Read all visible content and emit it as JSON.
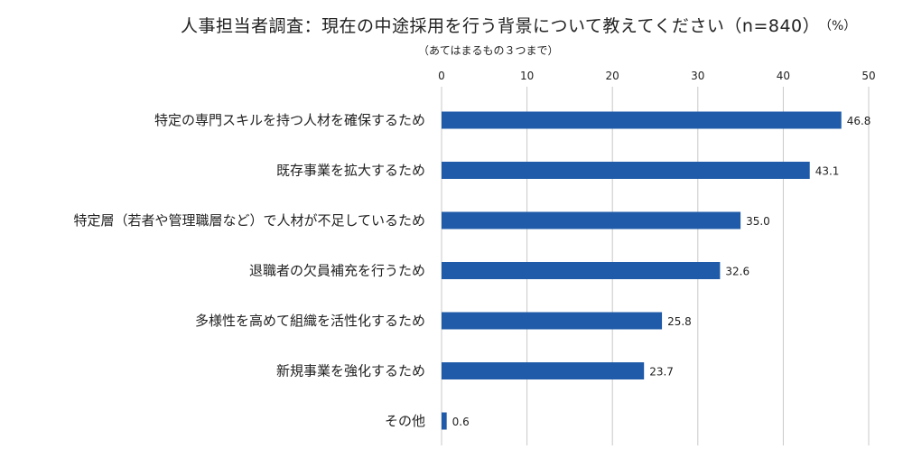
{
  "chart_data": {
    "type": "bar",
    "orientation": "horizontal",
    "title": "人事担当者調査：現在の中途採用を行う背景について教えてください（n=840）",
    "subtitle": "（あてはまるもの３つまで）",
    "unit": "（%）",
    "categories": [
      "特定の専門スキルを持つ人材を確保するため",
      "既存事業を拡大するため",
      "特定層（若者や管理職層など）で人材が不足しているため",
      "退職者の欠員補充を行うため",
      "多様性を高めて組織を活性化するため",
      "新規事業を強化するため",
      "その他"
    ],
    "values": [
      46.8,
      43.1,
      35.0,
      32.6,
      25.8,
      23.7,
      0.6
    ],
    "value_labels": [
      "46.8",
      "43.1",
      "35.0",
      "32.6",
      "25.8",
      "23.7",
      "0.6"
    ],
    "xlim": [
      0,
      50
    ],
    "ticks": [
      0,
      10,
      20,
      30,
      40,
      50
    ],
    "tick_labels": [
      "0",
      "10",
      "20",
      "30",
      "40",
      "50"
    ],
    "grid": true,
    "bar_color": "#1f5ba8",
    "grid_color": "#c8c8c8"
  }
}
